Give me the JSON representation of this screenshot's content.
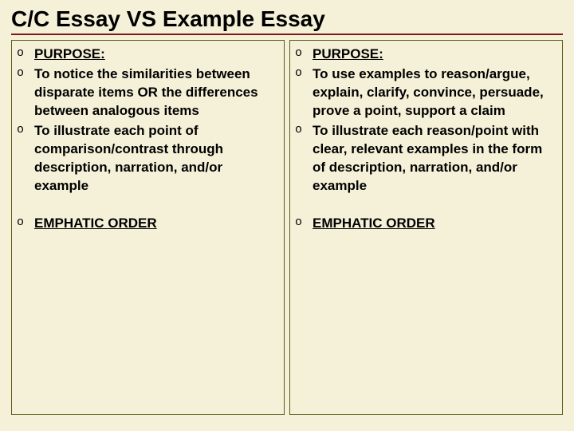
{
  "title": "C/C Essay VS Example Essay",
  "bullet_char": "o",
  "colors": {
    "background": "#f5f1d8",
    "title_border": "#7a1a1a",
    "box_border": "#5a5a1a",
    "text": "#000000"
  },
  "typography": {
    "title_fontsize": 28,
    "item_fontsize": 17,
    "font_family": "Verdana"
  },
  "left": {
    "items": [
      {
        "text": "PURPOSE:",
        "underline": true,
        "gap": false
      },
      {
        "text": "To notice the similarities between disparate items OR the differences between analogous items",
        "underline": false,
        "gap": false
      },
      {
        "text": "To illustrate each point of comparison/contrast through description, narration, and/or example",
        "underline": false,
        "gap": false
      },
      {
        "text": "EMPHATIC  ORDER",
        "underline": true,
        "gap": true
      }
    ]
  },
  "right": {
    "items": [
      {
        "text": " PURPOSE:",
        "underline": true,
        "gap": false
      },
      {
        "text": "To use examples to reason/argue, explain, clarify, convince, persuade, prove a point, support a claim",
        "underline": false,
        "gap": false
      },
      {
        "text": "To illustrate each reason/point with clear, relevant examples in the form of description, narration, and/or example",
        "underline": false,
        "gap": false
      },
      {
        "text": "EMPHATIC ORDER",
        "underline": true,
        "gap": true
      }
    ]
  }
}
